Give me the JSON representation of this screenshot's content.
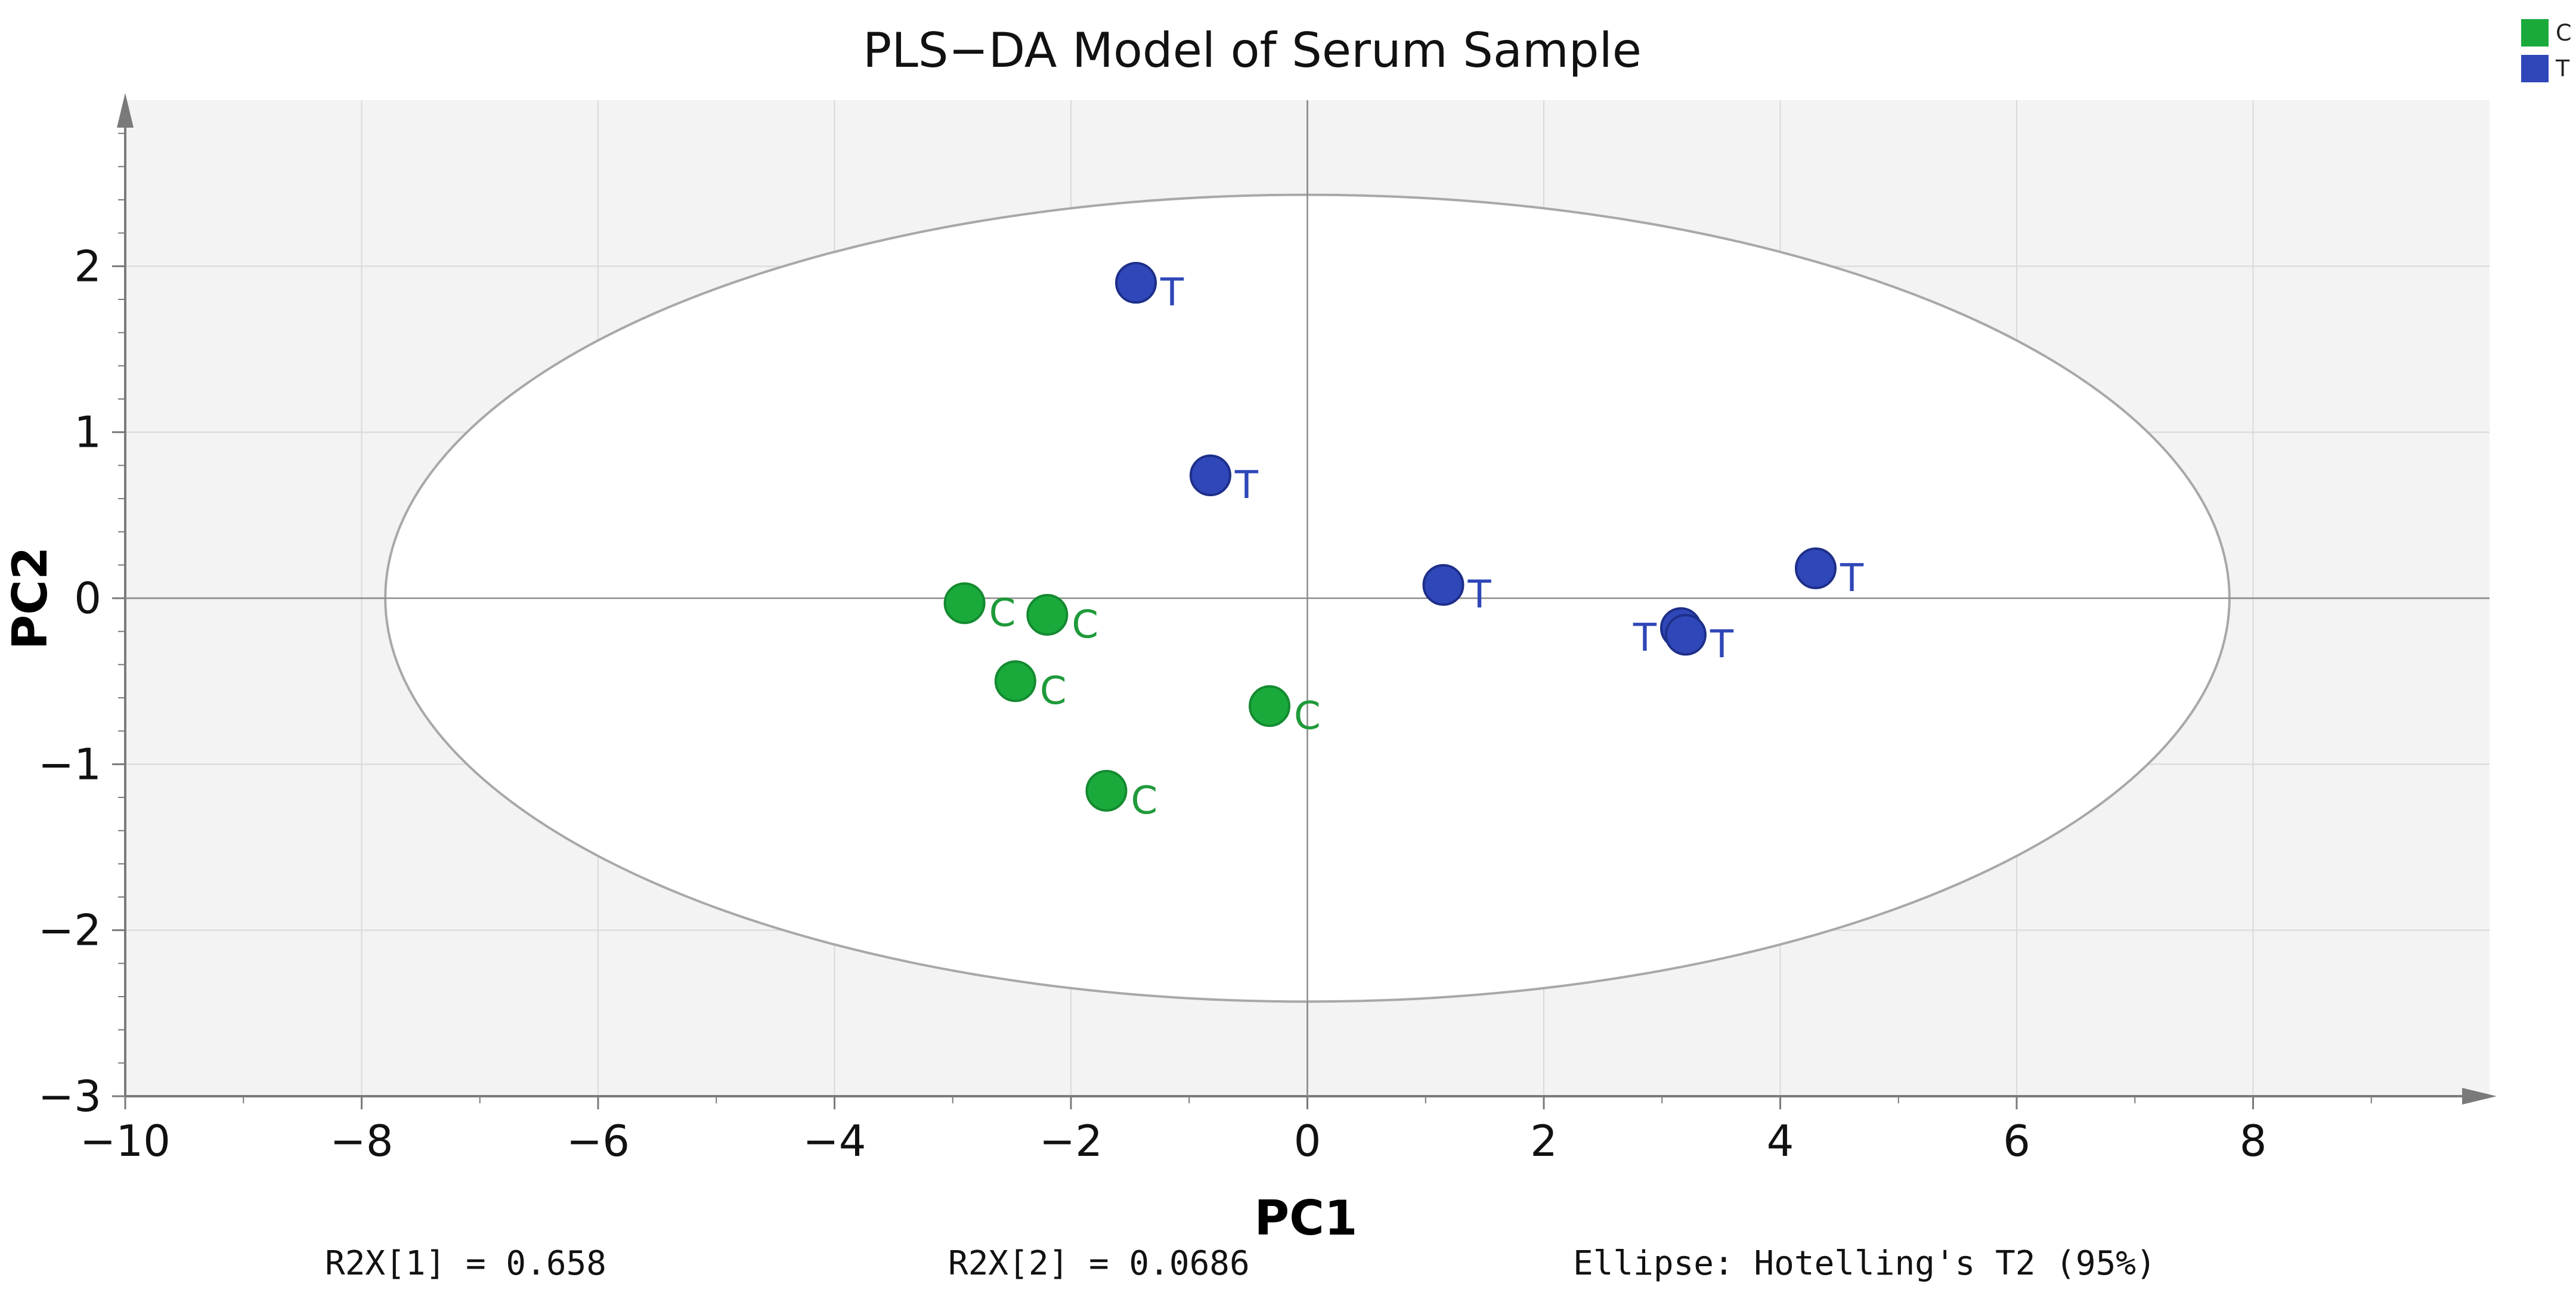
{
  "chart_data": {
    "type": "scatter",
    "title": "PLS−DA Model of Serum Sample",
    "xlabel": "PC1",
    "ylabel": "PC2",
    "xlim": [
      -10,
      10
    ],
    "ylim": [
      -3,
      3
    ],
    "xticks": [
      -10,
      -8,
      -6,
      -4,
      -2,
      0,
      2,
      4,
      6,
      8
    ],
    "xtick_labels": [
      "−10",
      "−8",
      "−6",
      "−4",
      "−2",
      "0",
      "2",
      "4",
      "6",
      "8"
    ],
    "yticks": [
      -3,
      -2,
      -1,
      0,
      1,
      2
    ],
    "ytick_labels": [
      "−3",
      "−2",
      "−1",
      "0",
      "1",
      "2"
    ],
    "grid": true,
    "legend_position": "top-right",
    "series": [
      {
        "name": "C",
        "color": "#1aaa3c",
        "points": [
          {
            "x": -2.9,
            "y": -0.03,
            "label": "C"
          },
          {
            "x": -2.2,
            "y": -0.1,
            "label": "C"
          },
          {
            "x": -2.47,
            "y": -0.5,
            "label": "C"
          },
          {
            "x": -0.32,
            "y": -0.65,
            "label": "C"
          },
          {
            "x": -1.7,
            "y": -1.16,
            "label": "C"
          }
        ]
      },
      {
        "name": "T",
        "color": "#2f47b8",
        "points": [
          {
            "x": -1.45,
            "y": 1.9,
            "label": "T"
          },
          {
            "x": -0.82,
            "y": 0.74,
            "label": "T"
          },
          {
            "x": 1.15,
            "y": 0.08,
            "label": "T"
          },
          {
            "x": 4.3,
            "y": 0.18,
            "label": "T"
          },
          {
            "x": 3.16,
            "y": -0.18,
            "label": "T",
            "label_side": "left"
          },
          {
            "x": 3.2,
            "y": -0.22,
            "label": "T"
          }
        ]
      }
    ],
    "ellipse": {
      "name": "Hotelling's T2 (95%)",
      "center_x": 0,
      "center_y": 0,
      "radius_x": 7.8,
      "radius_y": 2.43
    },
    "footer": {
      "r2x1": "R2X[1] = 0.658",
      "r2x2": "R2X[2] = 0.0686",
      "ellipse_note": "Ellipse: Hotelling's T2 (95%)"
    }
  }
}
